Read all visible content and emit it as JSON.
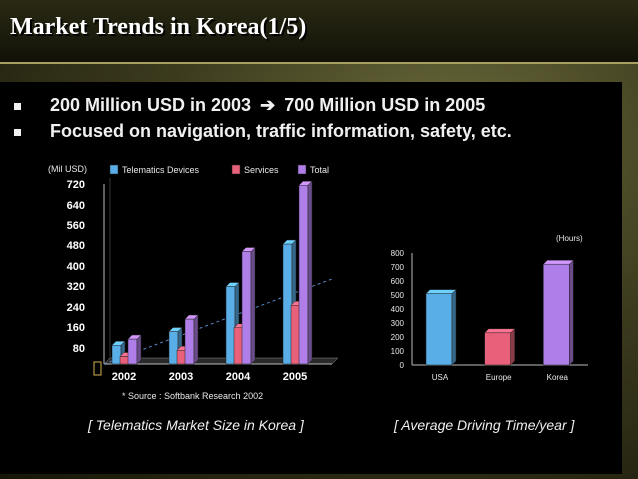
{
  "slide": {
    "title": "Market Trends in Korea(1/5)",
    "bullets": [
      {
        "before": "200 Million USD in 2003",
        "arrow": "➔",
        "after": "700 Million USD in 2005"
      },
      {
        "text": "Focused on navigation, traffic information, safety, etc."
      }
    ],
    "caption_left": "[ Telematics Market Size in Korea ]",
    "caption_right": "[ Average Driving Time/year ]",
    "source": "* Source : Softbank Research 2002"
  },
  "chart_data": [
    {
      "type": "bar",
      "ylabel": "(Mil USD)",
      "ytick_labels": [
        "720",
        "640",
        "560",
        "480",
        "400",
        "320",
        "240",
        "160",
        "80"
      ],
      "ylim": [
        0,
        720
      ],
      "categories": [
        "2002",
        "2003",
        "2004",
        "2005"
      ],
      "series": [
        {
          "name": "Telematics Devices",
          "color": "#5aaee8",
          "values": [
            75,
            130,
            310,
            480
          ]
        },
        {
          "name": "Services",
          "color": "#e8607a",
          "values": [
            30,
            55,
            145,
            235
          ]
        },
        {
          "name": "Total",
          "color": "#b07ee8",
          "values": [
            100,
            180,
            450,
            715
          ]
        }
      ],
      "trend_line": {
        "from": [
          0,
          0
        ],
        "to": [
          4,
          340
        ],
        "color": "#5a88c8"
      },
      "legend": "top",
      "grid": false
    },
    {
      "type": "bar",
      "ylabel": "(Hours)",
      "ylim": [
        0,
        800
      ],
      "yticks": [
        "0",
        "100",
        "200",
        "300",
        "400",
        "500",
        "600",
        "700",
        "800"
      ],
      "categories": [
        "USA",
        "Europe",
        "Korea"
      ],
      "series": [
        {
          "values": [
            510,
            230,
            720
          ],
          "colors": [
            "#5aaee8",
            "#e8607a",
            "#b07ee8"
          ]
        }
      ],
      "grid": false
    }
  ]
}
